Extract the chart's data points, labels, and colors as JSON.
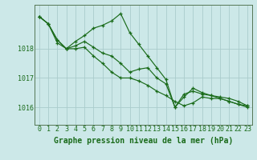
{
  "background_color": "#cce8e8",
  "grid_color": "#aacccc",
  "line_color": "#1a6b1a",
  "marker_color": "#1a6b1a",
  "xlabel": "Graphe pression niveau de la mer (hPa)",
  "xlabel_fontsize": 7.0,
  "tick_fontsize": 6.0,
  "xlim": [
    -0.5,
    23.5
  ],
  "ylim": [
    1015.4,
    1019.5
  ],
  "yticks": [
    1016,
    1017,
    1018
  ],
  "xticks": [
    0,
    1,
    2,
    3,
    4,
    5,
    6,
    7,
    8,
    9,
    10,
    11,
    12,
    13,
    14,
    15,
    16,
    17,
    18,
    19,
    20,
    21,
    22,
    23
  ],
  "series": [
    [
      1019.1,
      1018.85,
      1018.2,
      1018.0,
      1018.0,
      1018.05,
      1017.75,
      1017.5,
      1017.2,
      1017.0,
      1017.0,
      1016.9,
      1016.75,
      1016.55,
      1016.4,
      1016.2,
      1016.05,
      1016.15,
      1016.35,
      1016.3,
      1016.3,
      1016.2,
      1016.1,
      1016.0
    ],
    [
      1019.1,
      1018.85,
      1018.3,
      1018.0,
      1018.25,
      1018.45,
      1018.7,
      1018.8,
      1018.95,
      1019.2,
      1018.55,
      1018.15,
      1017.75,
      1017.35,
      1016.95,
      1016.0,
      1016.45,
      1016.55,
      1016.45,
      1016.4,
      1016.35,
      1016.3,
      1016.2,
      1016.05
    ],
    [
      1019.1,
      1018.85,
      1018.3,
      1018.0,
      1018.1,
      1018.25,
      1018.05,
      1017.85,
      1017.75,
      1017.5,
      1017.2,
      1017.3,
      1017.35,
      1017.0,
      1016.8,
      1016.0,
      1016.35,
      1016.65,
      1016.5,
      1016.4,
      1016.3,
      1016.2,
      1016.1,
      1016.05
    ]
  ]
}
